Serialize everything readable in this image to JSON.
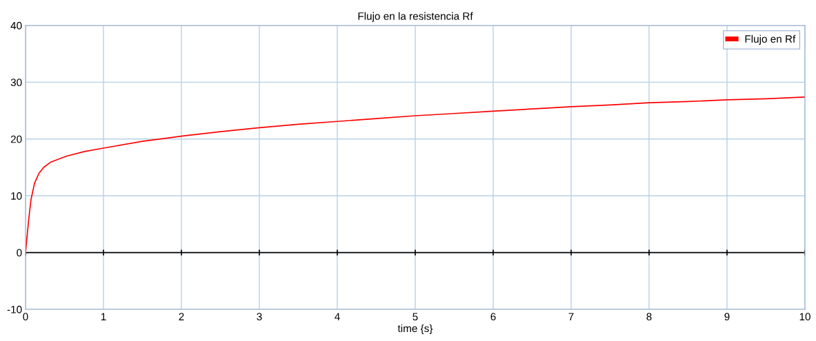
{
  "chart_data": {
    "type": "line",
    "title": "Flujo en la resistencia Rf",
    "xlabel": "time {s}",
    "xlim": [
      0,
      10
    ],
    "xticks": [
      0,
      1,
      2,
      3,
      4,
      5,
      6,
      7,
      8,
      9,
      10
    ],
    "ylim": [
      -10,
      40
    ],
    "yticks": [
      -10,
      0,
      10,
      20,
      30,
      40
    ],
    "grid": true,
    "legend": "top right",
    "ref_lines": [
      {
        "axis": "y",
        "value": 0,
        "color": "#000000"
      }
    ],
    "series": [
      {
        "name": "Flujo en Rf",
        "color": "#ff0000",
        "x": [
          0,
          0.006,
          0.04,
          0.07,
          0.115,
          0.174,
          0.233,
          0.32,
          0.53,
          0.76,
          1,
          1.5,
          2,
          2.5,
          3,
          3.5,
          4,
          4.5,
          5,
          5.5,
          6,
          6.5,
          7,
          7.5,
          8,
          8.5,
          9,
          9.5,
          10
        ],
        "values": [
          0,
          0.85,
          5.7,
          9.3,
          12.2,
          14.0,
          15.0,
          15.9,
          17.0,
          17.8,
          18.4,
          19.6,
          20.5,
          21.3,
          22.0,
          22.6,
          23.1,
          23.6,
          24.1,
          24.5,
          24.9,
          25.3,
          25.7,
          26.0,
          26.4,
          26.6,
          26.9,
          27.1,
          27.4
        ]
      }
    ]
  }
}
